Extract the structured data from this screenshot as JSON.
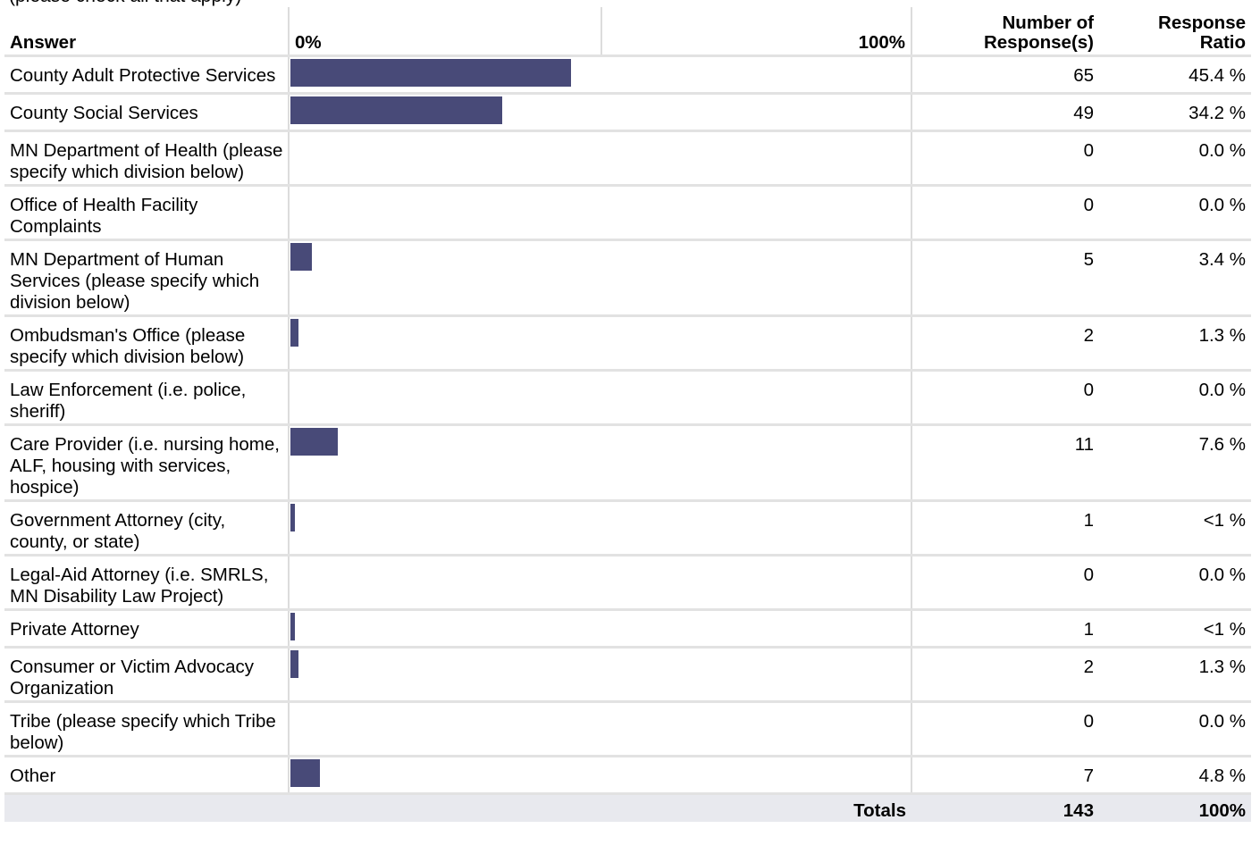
{
  "question_note": "(please check all that apply)",
  "header": {
    "answer": "Answer",
    "responses": "Number of Response(s)",
    "ratio": "Response Ratio"
  },
  "scale": {
    "min": {
      "value": 0,
      "label": "0%"
    },
    "max": {
      "value": 100,
      "label": "100%"
    }
  },
  "table": {
    "rows": [
      {
        "answer": "County Adult Protective Services",
        "responses": 65,
        "percent": 45.4,
        "percent_label": "45.4 %"
      },
      {
        "answer": "County Social Services",
        "responses": 49,
        "percent": 34.2,
        "percent_label": "34.2 %"
      },
      {
        "answer": "MN Department of Health (please specify which division below)",
        "responses": 0,
        "percent": 0.0,
        "percent_label": "0.0 %"
      },
      {
        "answer": "Office of Health Facility Complaints",
        "responses": 0,
        "percent": 0.0,
        "percent_label": "0.0 %"
      },
      {
        "answer": "MN Department of Human Services (please specify which division below)",
        "responses": 5,
        "percent": 3.4,
        "percent_label": "3.4 %"
      },
      {
        "answer": "Ombudsman's Office (please specify which division below)",
        "responses": 2,
        "percent": 1.3,
        "percent_label": "1.3 %"
      },
      {
        "answer": "Law Enforcement (i.e. police, sheriff)",
        "responses": 0,
        "percent": 0.0,
        "percent_label": "0.0 %"
      },
      {
        "answer": "Care Provider (i.e. nursing home, ALF, housing with services, hospice)",
        "responses": 11,
        "percent": 7.6,
        "percent_label": "7.6 %"
      },
      {
        "answer": "Government Attorney (city, county, or state)",
        "responses": 1,
        "percent": 0.7,
        "percent_label": "<1 %"
      },
      {
        "answer": "Legal-Aid Attorney (i.e. SMRLS, MN Disability Law Project)",
        "responses": 0,
        "percent": 0.0,
        "percent_label": "0.0 %"
      },
      {
        "answer": "Private Attorney",
        "responses": 1,
        "percent": 0.7,
        "percent_label": "<1 %"
      },
      {
        "answer": "Consumer or Victim Advocacy Organization",
        "responses": 2,
        "percent": 1.3,
        "percent_label": "1.3 %"
      },
      {
        "answer": "Tribe  (please specify which Tribe below)",
        "responses": 0,
        "percent": 0.0,
        "percent_label": "0.0 %"
      },
      {
        "answer": "Other",
        "responses": 7,
        "percent": 4.8,
        "percent_label": "4.8 %"
      }
    ]
  },
  "totals": {
    "label": "Totals",
    "responses": 143,
    "ratio": "100%"
  }
}
